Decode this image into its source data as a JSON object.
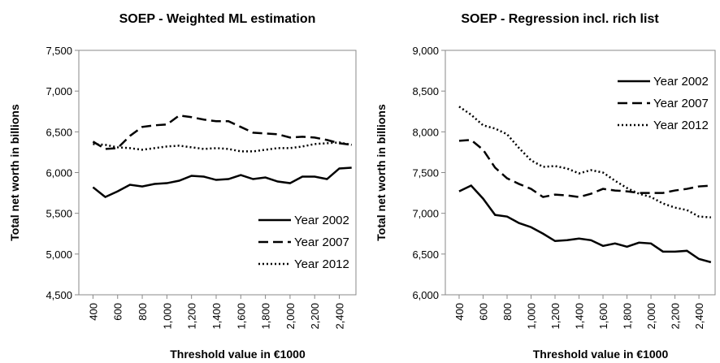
{
  "chart_data": [
    {
      "type": "line",
      "title": "SOEP - Weighted ML estimation",
      "x_label": "Threshold value in €1000",
      "y_label": "Total net worth in billions",
      "x": [
        400,
        500,
        600,
        700,
        800,
        900,
        1000,
        1100,
        1200,
        1300,
        1400,
        1500,
        1600,
        1700,
        1800,
        1900,
        2000,
        2100,
        2200,
        2300,
        2400,
        2500
      ],
      "xlim": [
        285,
        2535
      ],
      "xticks": [
        400,
        600,
        800,
        {
          "value": 1000,
          "label": "1,000"
        },
        {
          "value": 1200,
          "label": "1,200"
        },
        {
          "value": 1400,
          "label": "1,400"
        },
        {
          "value": 1600,
          "label": "1,600"
        },
        {
          "value": 1800,
          "label": "1,800"
        },
        {
          "value": 2000,
          "label": "2,000"
        },
        {
          "value": 2200,
          "label": "2,200"
        },
        {
          "value": 2400,
          "label": "2,400"
        }
      ],
      "ylim": [
        4500,
        7500
      ],
      "yticks": [
        {
          "value": 4500,
          "label": "4,500"
        },
        {
          "value": 5000,
          "label": "5,000"
        },
        {
          "value": 5500,
          "label": "5,500"
        },
        {
          "value": 6000,
          "label": "6,000"
        },
        {
          "value": 6500,
          "label": "6,500"
        },
        {
          "value": 7000,
          "label": "7,000"
        },
        {
          "value": 7500,
          "label": "7,500"
        }
      ],
      "legend": "lower right",
      "series": [
        {
          "name": "Year 2002",
          "color": "#000000",
          "dash": "solid",
          "values": [
            5820,
            5700,
            5770,
            5850,
            5830,
            5860,
            5870,
            5900,
            5960,
            5950,
            5910,
            5920,
            5970,
            5920,
            5940,
            5890,
            5870,
            5950,
            5950,
            5920,
            6050,
            6060
          ]
        },
        {
          "name": "Year 2007",
          "color": "#000000",
          "dash": "dashed",
          "values": [
            6380,
            6290,
            6300,
            6450,
            6560,
            6580,
            6590,
            6700,
            6680,
            6650,
            6630,
            6630,
            6560,
            6490,
            6480,
            6470,
            6430,
            6440,
            6430,
            6400,
            6360,
            6340
          ]
        },
        {
          "name": "Year 2012",
          "color": "#000000",
          "dash": "dotted",
          "values": [
            6350,
            6340,
            6310,
            6300,
            6280,
            6300,
            6320,
            6330,
            6310,
            6290,
            6300,
            6290,
            6260,
            6260,
            6280,
            6300,
            6300,
            6320,
            6350,
            6360,
            6370,
            6340
          ]
        }
      ]
    },
    {
      "type": "line",
      "title": "SOEP - Regression incl. rich list",
      "x_label": "Threshold value in €1000",
      "y_label": "Total net worth in billions",
      "x": [
        400,
        500,
        600,
        700,
        800,
        900,
        1000,
        1100,
        1200,
        1300,
        1400,
        1500,
        1600,
        1700,
        1800,
        1900,
        2000,
        2100,
        2200,
        2300,
        2400,
        2500
      ],
      "xlim": [
        285,
        2535
      ],
      "xticks": [
        400,
        600,
        800,
        {
          "value": 1000,
          "label": "1,000"
        },
        {
          "value": 1200,
          "label": "1,200"
        },
        {
          "value": 1400,
          "label": "1,400"
        },
        {
          "value": 1600,
          "label": "1,600"
        },
        {
          "value": 1800,
          "label": "1,800"
        },
        {
          "value": 2000,
          "label": "2,000"
        },
        {
          "value": 2200,
          "label": "2,200"
        },
        {
          "value": 2400,
          "label": "2,400"
        }
      ],
      "ylim": [
        6000,
        9000
      ],
      "yticks": [
        {
          "value": 6000,
          "label": "6,000"
        },
        {
          "value": 6500,
          "label": "6,500"
        },
        {
          "value": 7000,
          "label": "7,000"
        },
        {
          "value": 7500,
          "label": "7,500"
        },
        {
          "value": 8000,
          "label": "8,000"
        },
        {
          "value": 8500,
          "label": "8,500"
        },
        {
          "value": 9000,
          "label": "9,000"
        }
      ],
      "legend": "upper right",
      "series": [
        {
          "name": "Year 2002",
          "color": "#000000",
          "dash": "solid",
          "values": [
            7270,
            7340,
            7180,
            6980,
            6960,
            6880,
            6830,
            6750,
            6660,
            6670,
            6690,
            6670,
            6600,
            6630,
            6590,
            6640,
            6630,
            6530,
            6530,
            6540,
            6440,
            6400
          ]
        },
        {
          "name": "Year 2007",
          "color": "#000000",
          "dash": "dashed",
          "values": [
            7890,
            7900,
            7780,
            7560,
            7430,
            7360,
            7300,
            7200,
            7230,
            7220,
            7200,
            7240,
            7300,
            7280,
            7270,
            7250,
            7250,
            7250,
            7280,
            7300,
            7330,
            7340
          ]
        },
        {
          "name": "Year 2012",
          "color": "#000000",
          "dash": "dotted",
          "values": [
            8310,
            8210,
            8080,
            8040,
            7970,
            7800,
            7650,
            7570,
            7580,
            7550,
            7490,
            7530,
            7500,
            7400,
            7310,
            7240,
            7200,
            7120,
            7070,
            7040,
            6960,
            6950
          ]
        }
      ]
    }
  ]
}
